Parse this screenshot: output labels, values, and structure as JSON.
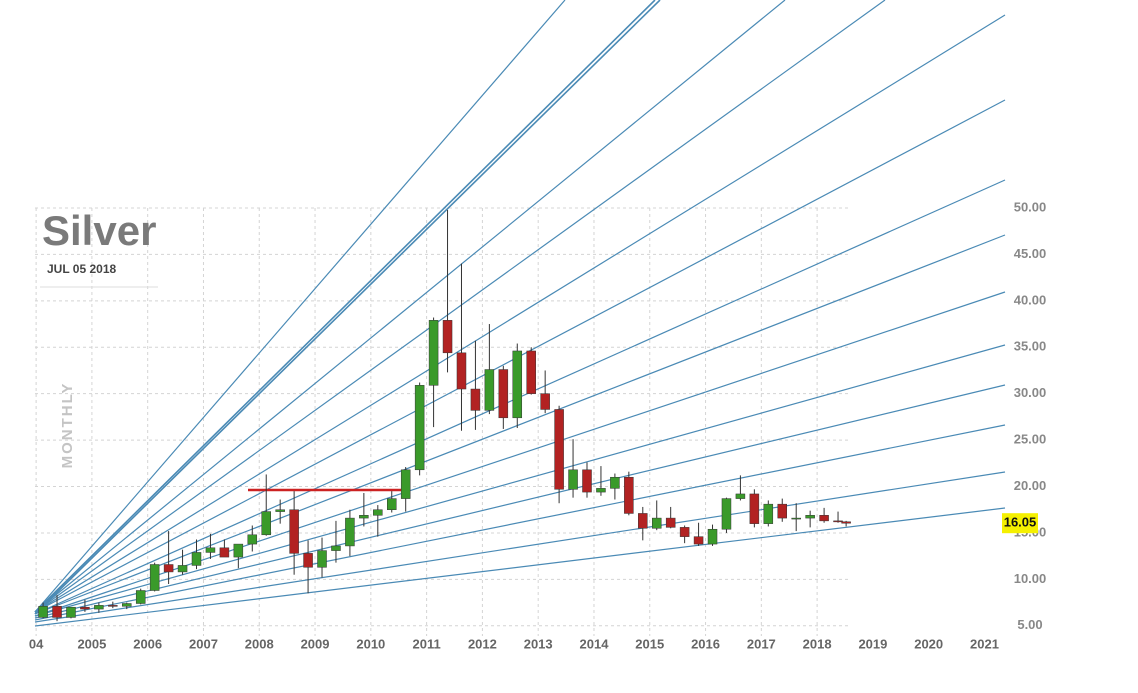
{
  "chart_data": {
    "type": "candlestick",
    "title": "Silver",
    "subtitle": "JUL 05 2018",
    "period_label": "MONTHLY",
    "last_price": 16.05,
    "up_color": "#3a9a2a",
    "down_color": "#b22222",
    "grid": true,
    "xlim": [
      2003.98,
      2021.35
    ],
    "ylim": [
      3.9,
      72.4
    ],
    "xticks": [
      {
        "value": 2004,
        "label": "04"
      },
      2005,
      2006,
      2007,
      2008,
      2009,
      2010,
      2011,
      2012,
      2013,
      2014,
      2015,
      2016,
      2017,
      2018,
      2019,
      2020,
      2021
    ],
    "yticks": [
      {
        "value": 5,
        "label": "5.00"
      },
      {
        "value": 10,
        "label": "10.00"
      },
      {
        "value": 15,
        "label": "15.00"
      },
      {
        "value": 20,
        "label": "20.00"
      },
      {
        "value": 25,
        "label": "25.00"
      },
      {
        "value": 30,
        "label": "30.00"
      },
      {
        "value": 35,
        "label": "35.00"
      },
      {
        "value": 40,
        "label": "40.00"
      },
      {
        "value": 45,
        "label": "45.00"
      },
      {
        "value": 50,
        "label": "50.00"
      }
    ],
    "x": [
      2004.125,
      2004.375,
      2004.625,
      2004.875,
      2005.125,
      2005.375,
      2005.625,
      2005.875,
      2006.125,
      2006.375,
      2006.625,
      2006.875,
      2007.125,
      2007.375,
      2007.625,
      2007.875,
      2008.125,
      2008.375,
      2008.625,
      2008.875,
      2009.125,
      2009.375,
      2009.625,
      2009.875,
      2010.125,
      2010.375,
      2010.625,
      2010.875,
      2011.125,
      2011.375,
      2011.625,
      2011.875,
      2012.125,
      2012.375,
      2012.625,
      2012.875,
      2013.125,
      2013.375,
      2013.625,
      2013.875,
      2014.125,
      2014.375,
      2014.625,
      2014.875,
      2015.125,
      2015.375,
      2015.625,
      2015.875,
      2016.125,
      2016.375,
      2016.625,
      2016.875,
      2017.125,
      2017.375,
      2017.625,
      2017.875,
      2018.125,
      2018.375,
      2018.52
    ],
    "open": [
      5.9,
      7.1,
      5.9,
      7.0,
      6.8,
      7.2,
      7.1,
      7.4,
      8.8,
      11.6,
      10.8,
      11.5,
      12.9,
      13.4,
      12.4,
      13.8,
      14.8,
      17.3,
      17.5,
      12.8,
      11.3,
      13.1,
      13.6,
      16.6,
      16.9,
      17.5,
      18.7,
      21.8,
      30.9,
      37.9,
      34.4,
      30.5,
      28.2,
      32.6,
      27.4,
      34.6,
      30.0,
      28.3,
      19.7,
      21.8,
      19.4,
      19.8,
      21.0,
      17.1,
      15.5,
      16.6,
      15.6,
      14.6,
      13.8,
      15.4,
      18.7,
      19.2,
      16.0,
      18.1,
      16.6,
      16.6,
      16.9,
      16.3,
      16.2
    ],
    "high": [
      7.5,
      8.3,
      7.0,
      7.8,
      7.5,
      7.6,
      7.5,
      9.0,
      11.8,
      15.2,
      13.2,
      14.3,
      14.9,
      14.3,
      13.7,
      15.8,
      21.3,
      18.6,
      19.5,
      14.2,
      14.5,
      16.3,
      17.5,
      19.3,
      18.0,
      19.5,
      22.1,
      31.2,
      38.2,
      49.8,
      44.0,
      35.7,
      37.5,
      33.0,
      35.4,
      35.0,
      32.5,
      28.7,
      25.1,
      22.6,
      22.2,
      21.4,
      21.6,
      17.8,
      18.5,
      17.8,
      15.8,
      16.1,
      15.9,
      18.8,
      21.2,
      19.7,
      18.5,
      18.7,
      18.2,
      17.4,
      17.7,
      17.3,
      16.3
    ],
    "low": [
      5.8,
      5.5,
      5.8,
      6.5,
      6.4,
      6.9,
      6.8,
      7.3,
      8.7,
      9.5,
      10.5,
      11.1,
      12.2,
      12.5,
      11.2,
      13.0,
      14.7,
      16.0,
      10.5,
      8.5,
      10.2,
      11.8,
      12.5,
      15.7,
      14.6,
      17.2,
      17.3,
      21.2,
      26.4,
      32.3,
      26.0,
      26.1,
      27.8,
      26.2,
      26.3,
      29.9,
      27.9,
      18.2,
      18.8,
      18.8,
      19.0,
      18.6,
      16.9,
      14.2,
      15.3,
      15.5,
      13.9,
      13.6,
      13.6,
      15.0,
      18.5,
      15.6,
      15.7,
      16.2,
      15.2,
      15.6,
      16.1,
      16.1,
      15.7
    ],
    "close": [
      7.1,
      5.9,
      7.0,
      6.8,
      7.2,
      7.1,
      7.4,
      8.8,
      11.6,
      10.8,
      11.5,
      12.9,
      13.4,
      12.4,
      13.8,
      14.8,
      17.3,
      17.5,
      12.8,
      11.3,
      13.1,
      13.6,
      16.6,
      16.9,
      17.5,
      18.7,
      21.8,
      30.9,
      37.9,
      34.4,
      30.5,
      28.2,
      32.6,
      27.4,
      34.6,
      30.0,
      28.3,
      19.7,
      21.8,
      19.4,
      19.8,
      21.0,
      17.1,
      15.5,
      16.6,
      15.6,
      14.6,
      13.8,
      15.4,
      18.7,
      19.2,
      16.0,
      18.1,
      16.6,
      16.6,
      16.9,
      16.3,
      16.2,
      16.05
    ]
  }
}
